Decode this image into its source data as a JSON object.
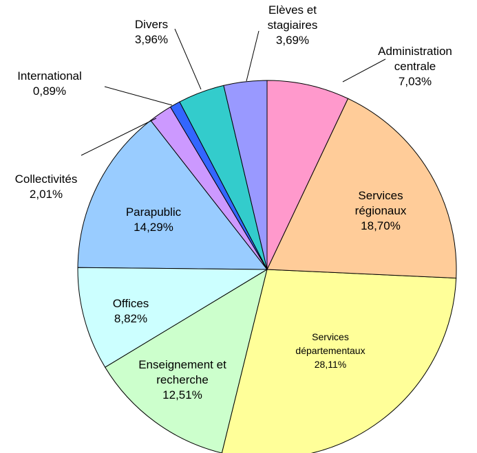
{
  "chart_data": {
    "type": "pie",
    "categories": [
      "Administration centrale",
      "Services régionaux",
      "Services départementaux",
      "Enseignement et recherche",
      "Offices",
      "Parapublic",
      "Collectivités",
      "International",
      "Divers",
      "Elèves et stagiaires"
    ],
    "values": [
      7.03,
      18.7,
      28.11,
      12.51,
      8.82,
      14.29,
      2.01,
      0.89,
      3.96,
      3.69
    ],
    "value_labels": [
      "7,03%",
      "18,70%",
      "28,11%",
      "12,51%",
      "8,82%",
      "14,29%",
      "2,01%",
      "0,89%",
      "3,96%",
      "3,69%"
    ],
    "colors": [
      "#FF99CC",
      "#FFCC99",
      "#FFFF99",
      "#CCFFCC",
      "#CCFFFF",
      "#99CCFF",
      "#CC99FF",
      "#3366FF",
      "#33CCCC",
      "#9999FF"
    ]
  }
}
